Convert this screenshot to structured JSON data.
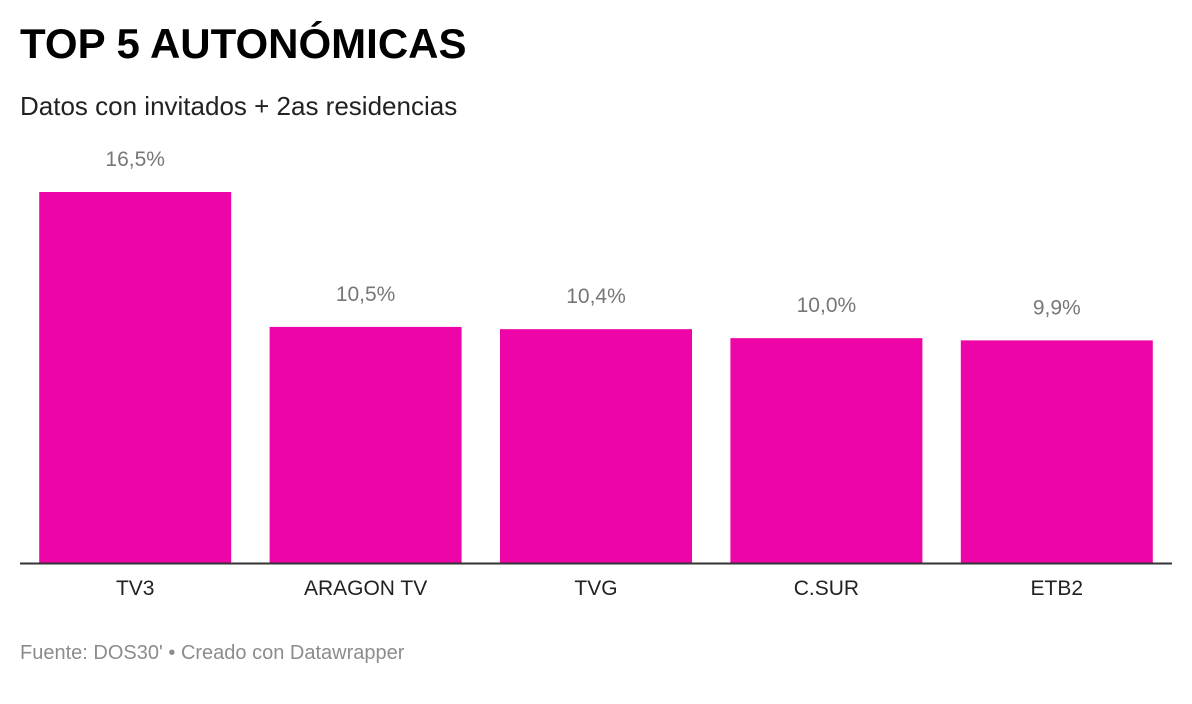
{
  "title": "TOP 5 AUTONÓMICAS",
  "subtitle": "Datos con invitados + 2as residencias",
  "footer": {
    "source": "Fuente: DOS30'",
    "separator": "•",
    "credit": "Creado con Datawrapper"
  },
  "colors": {
    "bar": "#ee05a7",
    "value_label": "#777777",
    "category_label": "#222222",
    "baseline": "#333333"
  },
  "chart_data": {
    "type": "bar",
    "title": "TOP 5 AUTONÓMICAS",
    "subtitle": "Datos con invitados + 2as residencias",
    "categories": [
      "TV3",
      "ARAGON TV",
      "TVG",
      "C.SUR",
      "ETB2"
    ],
    "values": [
      16.5,
      10.5,
      10.4,
      10.0,
      9.9
    ],
    "value_labels": [
      "16,5%",
      "10,5%",
      "10,4%",
      "10,0%",
      "9,9%"
    ],
    "unit": "%",
    "ylim": [
      0,
      16.5
    ],
    "xlabel": "",
    "ylabel": "",
    "grid": false,
    "legend": "none"
  }
}
